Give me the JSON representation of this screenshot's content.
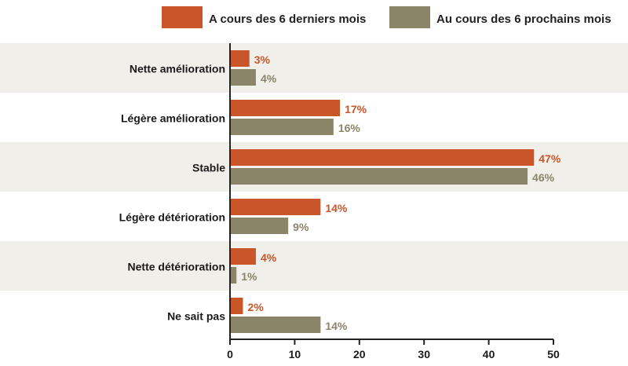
{
  "chart_data": {
    "type": "bar",
    "orientation": "horizontal",
    "categories": [
      "Nette amélioration",
      "Légère amélioration",
      "Stable",
      "Légère détérioration",
      "Nette détérioration",
      "Ne sait pas"
    ],
    "series": [
      {
        "name": "A cours des 6 derniers mois",
        "values": [
          3,
          17,
          47,
          14,
          4,
          2
        ],
        "labels": [
          "3%",
          "17%",
          "47%",
          "14%",
          "4%",
          "2%"
        ]
      },
      {
        "name": "Au cours des 6 prochains mois",
        "values": [
          4,
          16,
          46,
          9,
          1,
          14
        ],
        "labels": [
          "4%",
          "16%",
          "46%",
          "9%",
          "1%",
          "14%"
        ]
      }
    ],
    "xlim": [
      0,
      50
    ],
    "xticks": [
      "0",
      "10",
      "20",
      "30",
      "40",
      "50"
    ],
    "legend": "top",
    "grid": false,
    "colors": {
      "series1": "#c9552a",
      "series2": "#8a8468",
      "band": "#f1efe9"
    }
  }
}
